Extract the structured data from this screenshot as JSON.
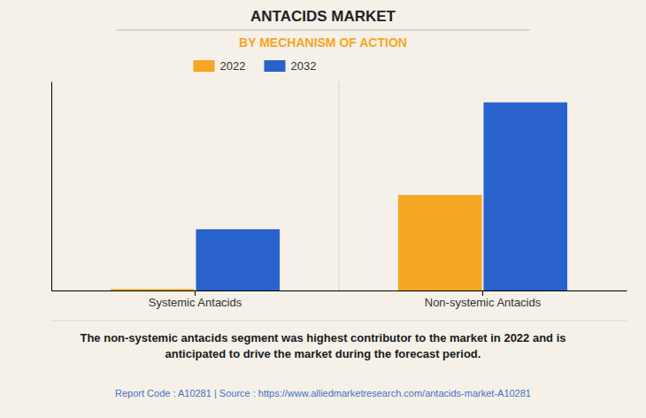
{
  "chart_data": {
    "type": "bar",
    "title": "ANTACIDS MARKET",
    "subtitle": "BY MECHANISM OF ACTION",
    "categories": [
      "Systemic Antacids",
      "Non-systemic Antacids"
    ],
    "series": [
      {
        "name": "2022",
        "color": "#F5A623",
        "values": [
          0.05,
          3.2
        ]
      },
      {
        "name": "2032",
        "color": "#2962CC",
        "values": [
          2.05,
          6.3
        ]
      }
    ],
    "ylim": [
      0,
      7
    ],
    "grid": false,
    "legend": "top",
    "tick_labels": "x",
    "annotations": [
      "The non-systemic antacids segment was highest contributor to the market in 2022 and is\nanticipated to drive the market during the forecast period.",
      "Report Code : A10281  |  Source : https://www.alliedmarketresearch.com/antacids-market-A10281"
    ]
  }
}
